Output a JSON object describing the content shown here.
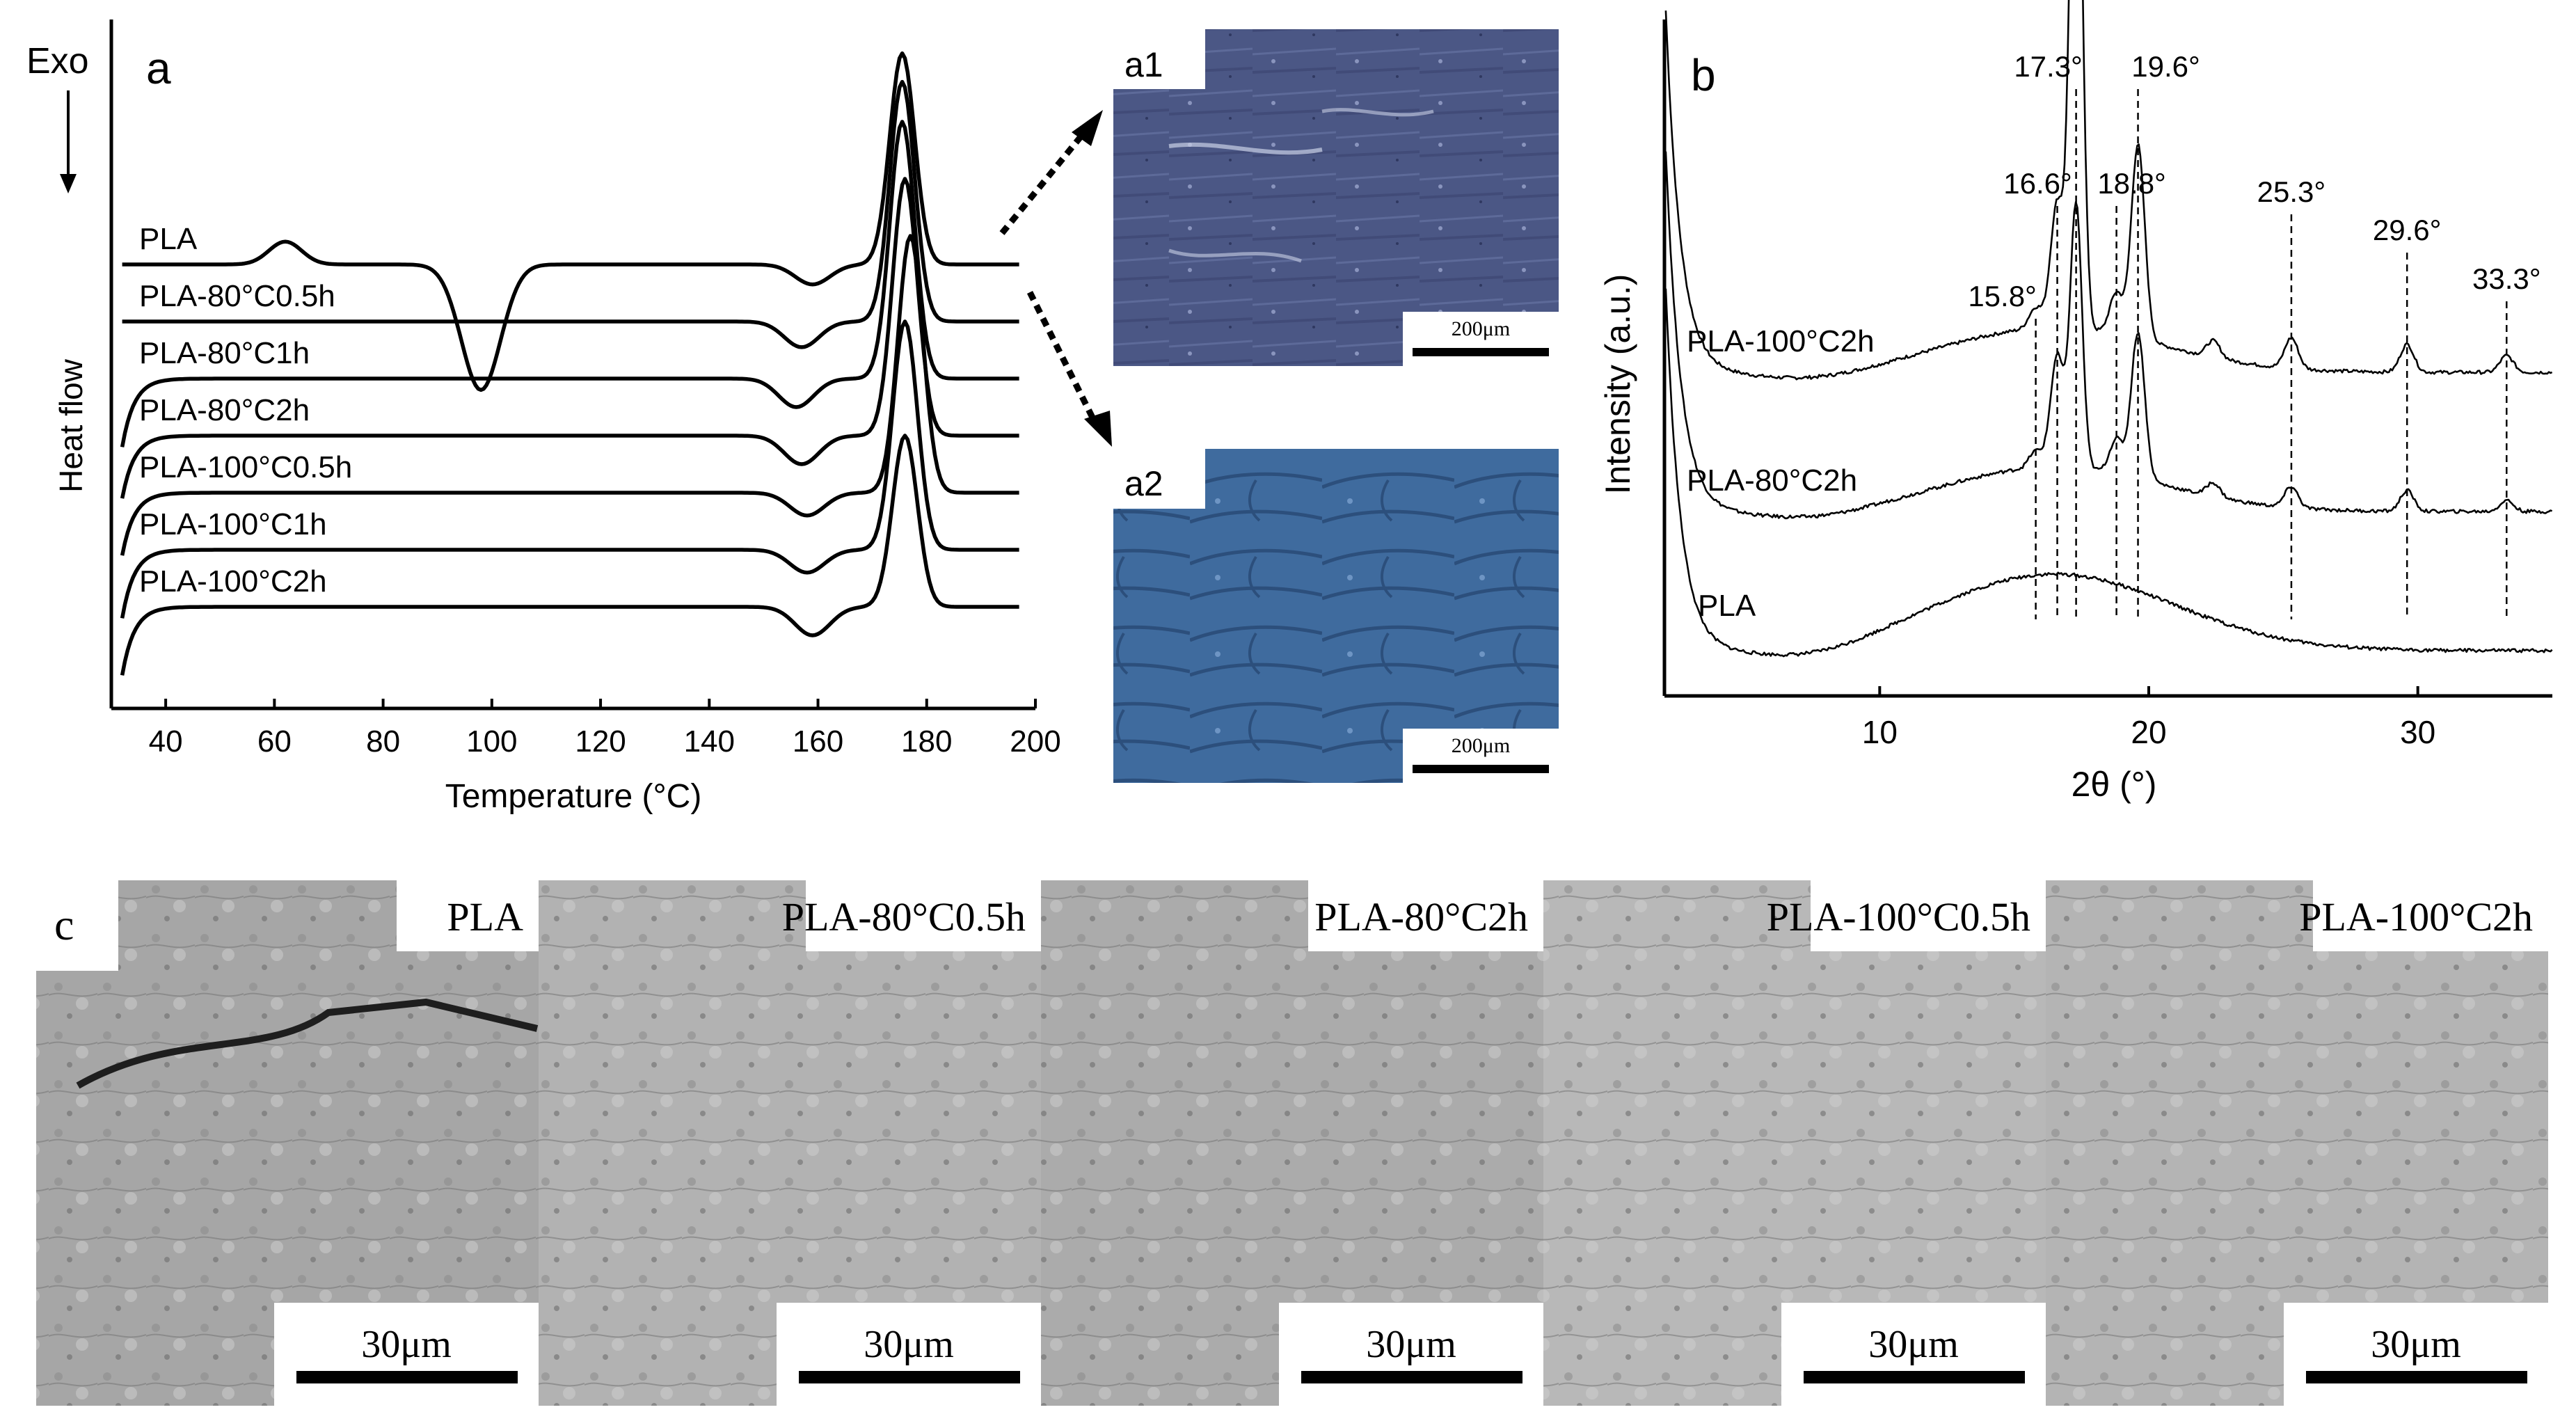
{
  "panel_a": {
    "label": "a",
    "exo_label": "Exo",
    "yaxis_label": "Heat flow",
    "xaxis_label": "Temperature (°C)"
  },
  "micrograph_a1": {
    "label": "a1",
    "scale_label": "200μm"
  },
  "micrograph_a2": {
    "label": "a2",
    "scale_label": "200μm"
  },
  "panel_b": {
    "label": "b",
    "xaxis_label": "2θ (°)",
    "yaxis_label": "Intensity (a.u.)"
  },
  "panel_c": {
    "label": "c",
    "images": [
      {
        "title": "PLA",
        "scale_label": "30μm",
        "tone": "#a6a6a6"
      },
      {
        "title": "PLA-80°C0.5h",
        "scale_label": "30μm",
        "tone": "#b2b2b2"
      },
      {
        "title": "PLA-80°C2h",
        "scale_label": "30μm",
        "tone": "#ababab"
      },
      {
        "title": "PLA-100°C0.5h",
        "scale_label": "30μm",
        "tone": "#b8b8b8"
      },
      {
        "title": "PLA-100°C2h",
        "scale_label": "30μm",
        "tone": "#b4b4b4"
      }
    ]
  },
  "colors": {
    "line": "#000000",
    "micro_a1": "#4b5785",
    "micro_a2": "#3f6b9e",
    "sem_dark": "#6e6e6e"
  },
  "chart_data": [
    {
      "type": "line",
      "xlabel": "Temperature (°C)",
      "ylabel": "Heat flow",
      "xlim": [
        30,
        200
      ],
      "xticks": [
        40,
        60,
        80,
        100,
        120,
        140,
        160,
        180,
        200
      ],
      "series": [
        {
          "name": "PLA",
          "baseline": 0.0,
          "start": 0.0,
          "glass": [
            62,
            0.4
          ],
          "cold_cryst": [
            98,
            -2.2
          ],
          "premelt": [
            159,
            -0.35
          ],
          "melt": [
            175.5,
            3.7
          ]
        },
        {
          "name": "PLA-80°C0.5h",
          "baseline": -1.0,
          "start": -1.0,
          "premelt": [
            157,
            -0.45
          ],
          "melt": [
            175.5,
            4.2
          ]
        },
        {
          "name": "PLA-80°C1h",
          "baseline": -2.0,
          "start": -3.2,
          "premelt": [
            156,
            -0.5
          ],
          "melt": [
            175.5,
            4.5
          ]
        },
        {
          "name": "PLA-80°C2h",
          "baseline": -3.0,
          "start": -4.1,
          "premelt": [
            157,
            -0.5
          ],
          "melt": [
            176,
            4.5
          ]
        },
        {
          "name": "PLA-100°C0.5h",
          "baseline": -4.0,
          "start": -5.1,
          "premelt": [
            158,
            -0.4
          ],
          "melt": [
            177,
            4.5
          ]
        },
        {
          "name": "PLA-100°C1h",
          "baseline": -5.0,
          "start": -6.2,
          "premelt": [
            158,
            -0.4
          ],
          "melt": [
            176,
            4.0
          ]
        },
        {
          "name": "PLA-100°C2h",
          "baseline": -6.0,
          "start": -7.2,
          "premelt": [
            159,
            -0.5
          ],
          "melt": [
            176,
            3.0
          ]
        }
      ]
    },
    {
      "type": "line",
      "xlabel": "2θ (°)",
      "ylabel": "Intensity (a.u.)",
      "xlim": [
        2,
        35
      ],
      "xticks": [
        10,
        20,
        30
      ],
      "peak_labels": [
        {
          "label": "15.8°",
          "x": 15.8
        },
        {
          "label": "16.6°",
          "x": 16.6
        },
        {
          "label": "17.3°",
          "x": 17.3
        },
        {
          "label": "18.8°",
          "x": 18.8
        },
        {
          "label": "19.6°",
          "x": 19.6
        },
        {
          "label": "25.3°",
          "x": 25.3
        },
        {
          "label": "29.6°",
          "x": 29.6
        },
        {
          "label": "33.3°",
          "x": 33.3
        }
      ],
      "series": [
        {
          "name": "PLA-100°C2h",
          "offset": 2.0,
          "peaks": [
            [
              15.8,
              0.15
            ],
            [
              16.6,
              0.9
            ],
            [
              17.3,
              4.6
            ],
            [
              18.8,
              0.3
            ],
            [
              19.6,
              1.4
            ],
            [
              22.4,
              0.12
            ],
            [
              25.3,
              0.22
            ],
            [
              29.6,
              0.2
            ],
            [
              33.3,
              0.12
            ]
          ]
        },
        {
          "name": "PLA-80°C2h",
          "offset": 1.0,
          "peaks": [
            [
              15.8,
              0.12
            ],
            [
              16.6,
              0.8
            ],
            [
              17.3,
              1.9
            ],
            [
              18.8,
              0.25
            ],
            [
              19.6,
              1.05
            ],
            [
              22.4,
              0.1
            ],
            [
              25.3,
              0.15
            ],
            [
              29.6,
              0.15
            ],
            [
              33.3,
              0.08
            ]
          ]
        },
        {
          "name": "PLA",
          "offset": 0.0,
          "amorphous": [
            16.5,
            0.55
          ]
        }
      ]
    }
  ]
}
